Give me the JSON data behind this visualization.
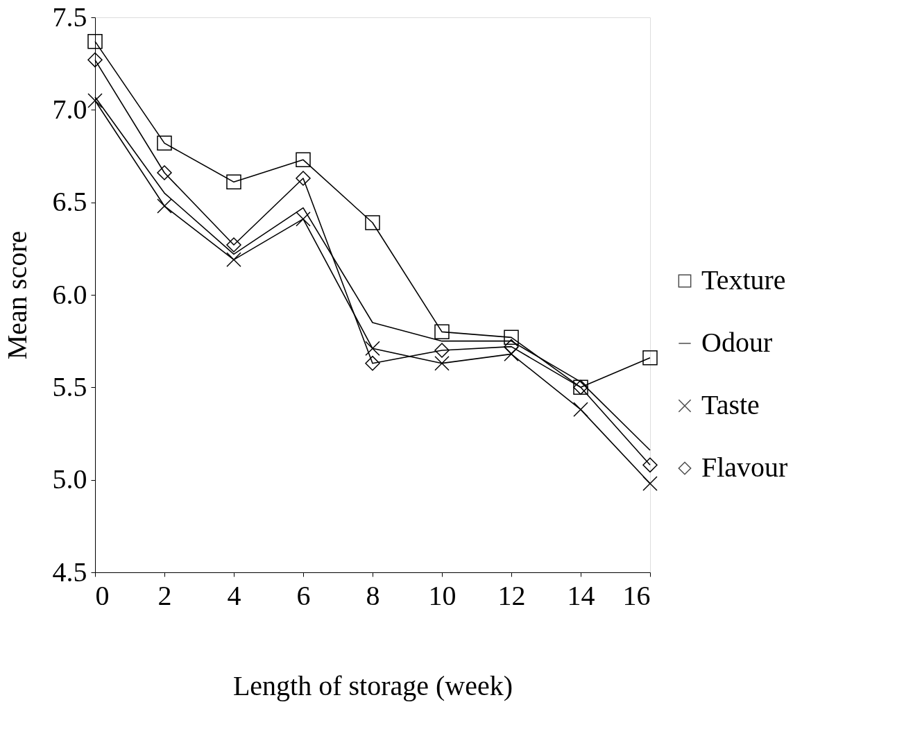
{
  "chart_data": {
    "type": "line",
    "xlabel": "Length of storage (week)",
    "ylabel": "Mean score",
    "x": [
      0,
      2,
      4,
      6,
      8,
      10,
      12,
      14,
      16
    ],
    "series": [
      {
        "name": "Texture",
        "color": "#000000",
        "marker": "square",
        "values": [
          7.37,
          6.82,
          6.61,
          6.73,
          6.39,
          5.8,
          5.77,
          5.5,
          5.66
        ]
      },
      {
        "name": "Odour",
        "color": "#000000",
        "marker": "none",
        "values": [
          7.07,
          6.55,
          6.22,
          6.47,
          5.85,
          5.75,
          5.75,
          5.53,
          5.16
        ]
      },
      {
        "name": "Taste",
        "color": "#000000",
        "marker": "cross",
        "values": [
          7.05,
          6.48,
          6.19,
          6.41,
          5.71,
          5.63,
          5.68,
          5.38,
          4.98
        ]
      },
      {
        "name": "Flavour",
        "color": "#000000",
        "marker": "diamond",
        "values": [
          7.27,
          6.66,
          6.27,
          6.63,
          5.63,
          5.7,
          5.72,
          5.5,
          5.08
        ]
      }
    ],
    "xlim": [
      0,
      16
    ],
    "xticks": [
      0,
      2,
      4,
      6,
      8,
      10,
      12,
      14,
      16
    ],
    "ylim": [
      4.5,
      7.5
    ],
    "yticks": [
      4.5,
      {
        "value": 5,
        "label": "5.0"
      },
      5.5,
      {
        "value": 6,
        "label": "6.0"
      },
      6.5,
      {
        "value": 7,
        "label": "7.0"
      },
      7.5
    ],
    "grid": false,
    "legend": "right",
    "line_style": "solid"
  }
}
